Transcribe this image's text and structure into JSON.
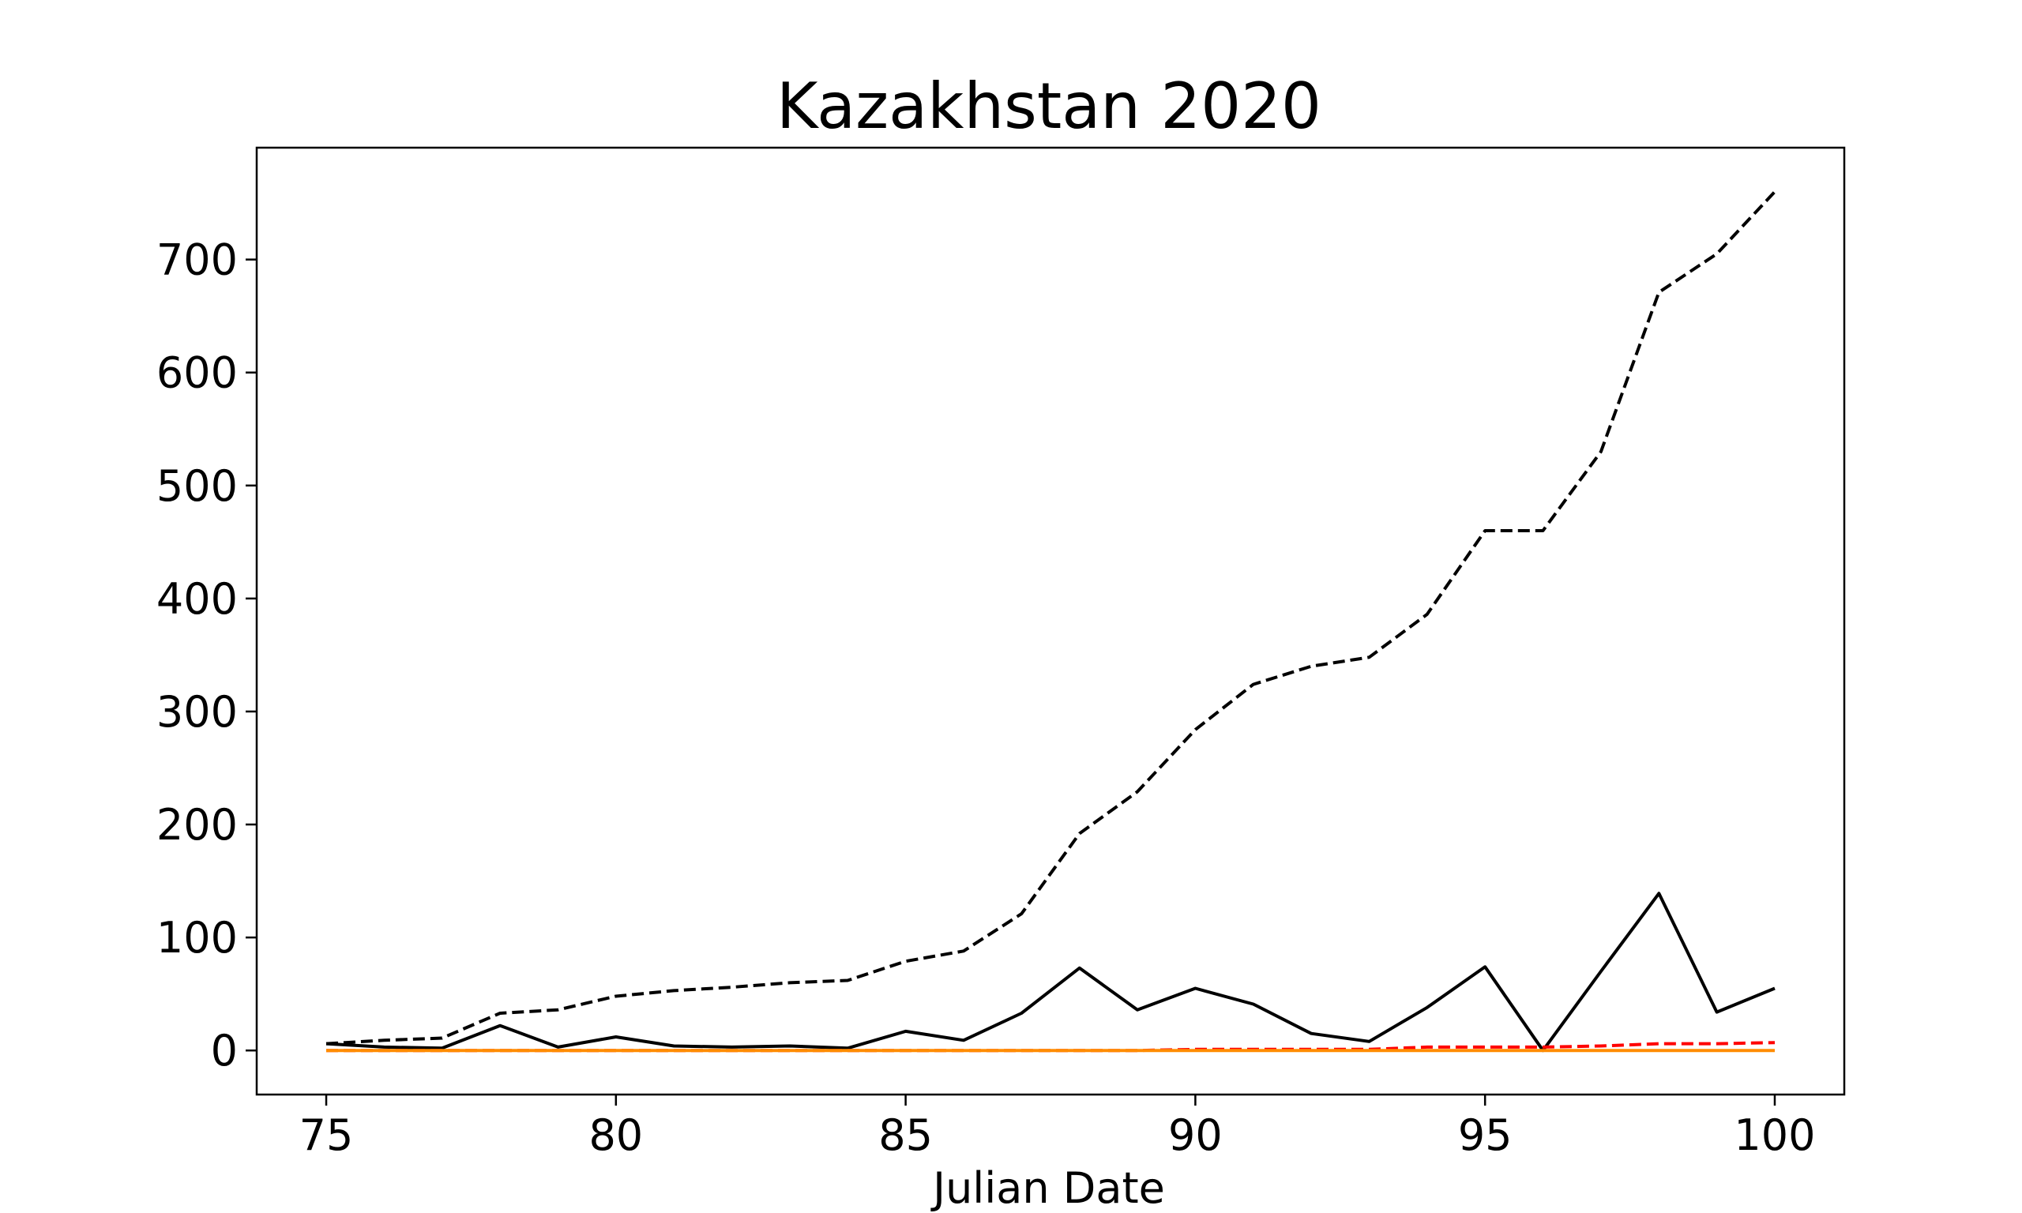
{
  "chart_data": {
    "type": "line",
    "title": "Kazakhstan 2020",
    "xlabel": "Julian Date",
    "ylabel": "",
    "xlim": [
      73.8,
      101.2
    ],
    "ylim": [
      -39,
      799
    ],
    "xticks": [
      75,
      80,
      85,
      90,
      95,
      100
    ],
    "yticks": [
      0,
      100,
      200,
      300,
      400,
      500,
      600,
      700
    ],
    "grid": false,
    "x": [
      75,
      76,
      77,
      78,
      79,
      80,
      81,
      82,
      83,
      84,
      85,
      86,
      87,
      88,
      89,
      90,
      91,
      92,
      93,
      94,
      95,
      96,
      97,
      98,
      99,
      100
    ],
    "series": [
      {
        "color": "#000000",
        "style": "dashed",
        "values": [
          6,
          9,
          11,
          33,
          36,
          48,
          53,
          56,
          60,
          62,
          79,
          88,
          121,
          192,
          229,
          284,
          324,
          340,
          348,
          386,
          460,
          460,
          530,
          671,
          705,
          760
        ]
      },
      {
        "color": "#000000",
        "style": "solid",
        "values": [
          6,
          3,
          2,
          22,
          3,
          12,
          4,
          3,
          4,
          2,
          17,
          9,
          33,
          73,
          36,
          55,
          41,
          15,
          8,
          38,
          74,
          0,
          70,
          139,
          34,
          55
        ]
      },
      {
        "color": "#ff0000",
        "style": "dashed",
        "values": [
          0,
          0,
          0,
          0,
          0,
          0,
          0,
          0,
          0,
          0,
          0,
          0,
          0,
          0,
          0,
          1,
          1,
          1,
          1,
          3,
          3,
          3,
          4,
          6,
          6,
          7
        ]
      },
      {
        "color": "#ff8c00",
        "style": "solid",
        "values": [
          0,
          0,
          0,
          0,
          0,
          0,
          0,
          0,
          0,
          0,
          0,
          0,
          0,
          0,
          0,
          0,
          0,
          0,
          0,
          0,
          0,
          0,
          0,
          0,
          0,
          0
        ]
      }
    ]
  }
}
